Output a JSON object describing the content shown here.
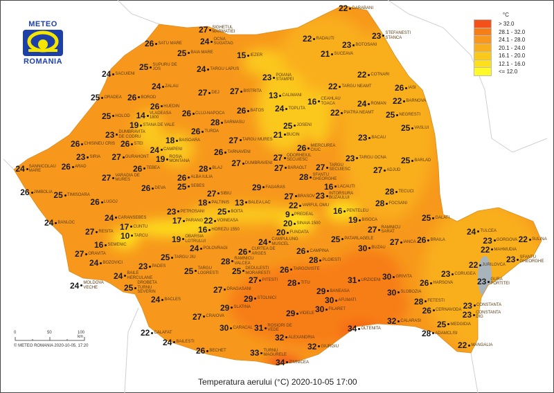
{
  "logo": {
    "top": "METEO",
    "bottom": "ROMANIA",
    "brand_color": "#1d3fa8",
    "accent_color": "#f5e600"
  },
  "title": "Temperatura aerului (°C) 2020-10-05 17:00",
  "legend": {
    "unit": "°C",
    "classes": [
      {
        "label": "> 32.0",
        "color": "#f4501a"
      },
      {
        "label": "28.1 - 32.0",
        "color": "#f77d16"
      },
      {
        "label": "24.1 - 28.0",
        "color": "#f7981c"
      },
      {
        "label": "20.1 - 24.0",
        "color": "#f9ae1e"
      },
      {
        "label": "16.1 - 20.0",
        "color": "#fbc81c"
      },
      {
        "label": "12.1 - 16.0",
        "color": "#fde01a"
      },
      {
        "label": "<= 12.0",
        "color": "#fff92a"
      }
    ]
  },
  "scale_bar": {
    "ticks": [
      "0",
      "50",
      "100 km"
    ]
  },
  "copyright": "© METEO ROMANIA 2020-10-05, 17:20",
  "stations": [
    {
      "name": "SIGHETUL MARMATIEI",
      "value": "27"
    },
    {
      "name": "OCNA SUGATAG",
      "value": "24"
    },
    {
      "name": "SATU MARE",
      "value": "26"
    },
    {
      "name": "BAIA MARE",
      "value": "25"
    },
    {
      "name": "IEZER",
      "value": "15"
    },
    {
      "name": "SUPURU DE JOS",
      "value": "25"
    },
    {
      "name": "SACUIENI",
      "value": "24"
    },
    {
      "name": "TARGU LAPUS",
      "value": "24"
    },
    {
      "name": "ZALAU",
      "value": "24"
    },
    {
      "name": "DEJ",
      "value": "27"
    },
    {
      "name": "BISTRITA",
      "value": "27"
    },
    {
      "name": "POIANA STAMPEI",
      "value": "23"
    },
    {
      "name": "CALIMANI",
      "value": "13"
    },
    {
      "name": "ORADEA",
      "value": "25"
    },
    {
      "name": "BOROD",
      "value": "26"
    },
    {
      "name": "HUEDIN",
      "value": "26"
    },
    {
      "name": "VLADEASA 1800",
      "value": "14"
    },
    {
      "name": "HOLOD",
      "value": "25"
    },
    {
      "name": "STANA DE VALE",
      "value": "19"
    },
    {
      "name": "DUMBRAVITA DE CODRU",
      "value": "23"
    },
    {
      "name": "CHISINEU CRIS",
      "value": "26"
    },
    {
      "name": "STEI",
      "value": "26"
    },
    {
      "name": "CLUJ-NAPOCA",
      "value": "26"
    },
    {
      "name": "BATOS",
      "value": "26"
    },
    {
      "name": "SARMASU",
      "value": "28"
    },
    {
      "name": "TURDA",
      "value": "26"
    },
    {
      "name": "TARGU MURES",
      "value": "27"
    },
    {
      "name": "BAISOARA",
      "value": "18"
    },
    {
      "name": "TOPLITA",
      "value": "24"
    },
    {
      "name": "BUCIN",
      "value": "21"
    },
    {
      "name": "JOSENI",
      "value": "25"
    },
    {
      "name": "CEAHLAU TOACA",
      "value": "16"
    },
    {
      "name": "CAMPENI",
      "value": "24"
    },
    {
      "name": "ROSIA MONTANA",
      "value": "19"
    },
    {
      "name": "SIRIA",
      "value": "23"
    },
    {
      "name": "GURAHONT",
      "value": "27"
    },
    {
      "name": "TARNAVENI",
      "value": "26"
    },
    {
      "name": "ODORHEIUL SECUIESC",
      "value": "27"
    },
    {
      "name": "MIERCUREA CIUC",
      "value": "26"
    },
    {
      "name": "SANNICOLAU MARE",
      "value": "24"
    },
    {
      "name": "ARAD",
      "value": "26"
    },
    {
      "name": "VARADIA DE MURES",
      "value": "27"
    },
    {
      "name": "TEBEA",
      "value": "26"
    },
    {
      "name": "ALBA IULIA",
      "value": "26"
    },
    {
      "name": "BLAJ",
      "value": "28"
    },
    {
      "name": "DUMBRAVENI",
      "value": "27"
    },
    {
      "name": "SEBES",
      "value": "25"
    },
    {
      "name": "DEVA",
      "value": "26"
    },
    {
      "name": "JIMBOLIA",
      "value": "26"
    },
    {
      "name": "TIMISOARA",
      "value": "25"
    },
    {
      "name": "LUGOJ",
      "value": "26"
    },
    {
      "name": "SIBIU",
      "value": "27"
    },
    {
      "name": "FAGARAS",
      "value": "29"
    },
    {
      "name": "BARAOLT",
      "value": "27"
    },
    {
      "name": "TARGU SECUIESC",
      "value": "27"
    },
    {
      "name": "SFANTU GHEORGHE",
      "value": "28"
    },
    {
      "name": "LACAUTI",
      "value": "16"
    },
    {
      "name": "TARGU OCNA",
      "value": "23"
    },
    {
      "name": "BACAU",
      "value": "23"
    },
    {
      "name": "ADJUD",
      "value": "27"
    },
    {
      "name": "BARLAD",
      "value": "25"
    },
    {
      "name": "VASLUI",
      "value": "25"
    },
    {
      "name": "NEGRESTI",
      "value": "25"
    },
    {
      "name": "BARNOVA",
      "value": "22"
    },
    {
      "name": "IASI",
      "value": "26"
    },
    {
      "name": "ROMAN",
      "value": "24"
    },
    {
      "name": "PIATRA NEAMT",
      "value": "22"
    },
    {
      "name": "TARGU NEAMT",
      "value": "22"
    },
    {
      "name": "COTNARI",
      "value": "22"
    },
    {
      "name": "SUCEAVA",
      "value": "21"
    },
    {
      "name": "BOTOSANI",
      "value": "23"
    },
    {
      "name": "RADAUTI",
      "value": "22"
    },
    {
      "name": "DARABANI",
      "value": "22"
    },
    {
      "name": "STEFANESTI STANCA",
      "value": "23"
    },
    {
      "name": "TECUCI",
      "value": "28"
    },
    {
      "name": "FOCSANI",
      "value": "28"
    },
    {
      "name": "GALATI",
      "value": "25"
    },
    {
      "name": "PALTINIS",
      "value": "18"
    },
    {
      "name": "BOITA",
      "value": "25"
    },
    {
      "name": "BALEA LAC",
      "value": "13"
    },
    {
      "name": "INTORSURA BUZAULUI",
      "value": "23"
    },
    {
      "name": "BISOCA",
      "value": "19"
    },
    {
      "name": "PENTELEU",
      "value": "16"
    },
    {
      "name": "BRASOV",
      "value": "27"
    },
    {
      "name": "VARFUL OMU",
      "value": "22"
    },
    {
      "name": "PREDEAL",
      "value": "9"
    },
    {
      "name": "FUNDATA",
      "value": "20"
    },
    {
      "name": "SINAIA 1500",
      "value": "20"
    },
    {
      "name": "CAMPULUNG MUSCEL",
      "value": "24"
    },
    {
      "name": "BANLOC",
      "value": "24"
    },
    {
      "name": "CARANSEBES",
      "value": "24"
    },
    {
      "name": "RESITA",
      "value": "27"
    },
    {
      "name": "CUNTU",
      "value": "17"
    },
    {
      "name": "TARCU",
      "value": "10"
    },
    {
      "name": "SEMENIC",
      "value": "16"
    },
    {
      "name": "ORAVITA",
      "value": "27"
    },
    {
      "name": "BOZOVICI",
      "value": "24"
    },
    {
      "name": "MOLDOVA VECHE",
      "value": "24"
    },
    {
      "name": "BAILE HERCULANE",
      "value": "24"
    },
    {
      "name": "PADES",
      "value": "23"
    },
    {
      "name": "PETROSANI",
      "value": "23"
    },
    {
      "name": "OBARSIA LOTRULUI",
      "value": "19"
    },
    {
      "name": "PARANG",
      "value": "17"
    },
    {
      "name": "VOINEASA",
      "value": "22"
    },
    {
      "name": "HOREZU 1550",
      "value": "16"
    },
    {
      "name": "POLOVRAGI",
      "value": "24"
    },
    {
      "name": "TARGU JIU",
      "value": "25"
    },
    {
      "name": "TARGU LOGRESTI",
      "value": "25"
    },
    {
      "name": "RAMNICU VALCEA",
      "value": "28"
    },
    {
      "name": "CURTEA DE ARGES",
      "value": "26"
    },
    {
      "name": "DEDULESTI MORARESTI",
      "value": "25"
    },
    {
      "name": "PITESTI",
      "value": "27"
    },
    {
      "name": "DRAGASANI",
      "value": "27"
    },
    {
      "name": "CAMPINA",
      "value": "26"
    },
    {
      "name": "TARGOVISTE",
      "value": "26"
    },
    {
      "name": "PLOIESTI",
      "value": "28"
    },
    {
      "name": "PATARLAGELE",
      "value": "25"
    },
    {
      "name": "BUZAU",
      "value": "30"
    },
    {
      "name": "RAMNICU SARAT",
      "value": "27"
    },
    {
      "name": "IANCA",
      "value": "27"
    },
    {
      "name": "BRAILA",
      "value": "26"
    },
    {
      "name": "TULCEA",
      "value": "24"
    },
    {
      "name": "GORGOVA",
      "value": "23"
    },
    {
      "name": "MAHMUDIA",
      "value": "22"
    },
    {
      "name": "SULINA",
      "value": "22"
    },
    {
      "name": "SFANTU GHEORGHE",
      "value": "23"
    },
    {
      "name": "JURILOVCA",
      "value": "22"
    },
    {
      "name": "GURA PORTITEI",
      "value": "23"
    },
    {
      "name": "CORUGEA",
      "value": "23"
    },
    {
      "name": "HARSOVA",
      "value": "26"
    },
    {
      "name": "TITU",
      "value": "28"
    },
    {
      "name": "URZICENI",
      "value": "31"
    },
    {
      "name": "GRIVITA",
      "value": "30"
    },
    {
      "name": "SLOBOZIA",
      "value": "30"
    },
    {
      "name": "BANEASA",
      "value": "29"
    },
    {
      "name": "AFUMATI",
      "value": "30"
    },
    {
      "name": "FILARET",
      "value": "30"
    },
    {
      "name": "STOLNICI",
      "value": "29"
    },
    {
      "name": "SLATINA",
      "value": "29"
    },
    {
      "name": "CRAIOVA",
      "value": "27"
    },
    {
      "name": "VIDELE",
      "value": "29"
    },
    {
      "name": "FETESTI",
      "value": "28"
    },
    {
      "name": "CERNAVODA",
      "value": "26"
    },
    {
      "name": "MEDGIDIA",
      "value": "25"
    },
    {
      "name": "CONSTANTA",
      "value": "23"
    },
    {
      "name": "CONSTANTA DIG",
      "value": "23"
    },
    {
      "name": "CALARASI",
      "value": "32"
    },
    {
      "name": "ADAMCLISI",
      "value": "28"
    },
    {
      "name": "OLTENITA",
      "value": "34"
    },
    {
      "name": "CARACAL",
      "value": "30"
    },
    {
      "name": "ROSIORI DE VEDE",
      "value": "31"
    },
    {
      "name": "ALEXANDRIA",
      "value": "32"
    },
    {
      "name": "GIURGIU",
      "value": "32"
    },
    {
      "name": "ZIMNICEA",
      "value": "34"
    },
    {
      "name": "TURNU MAGURELE",
      "value": "33"
    },
    {
      "name": "BECHET",
      "value": "26"
    },
    {
      "name": "BAILESTI",
      "value": "24"
    },
    {
      "name": "CALAFAT",
      "value": "22"
    },
    {
      "name": "BACLES",
      "value": "24"
    },
    {
      "name": "DROBETA TURNU SEVERIN",
      "value": "25"
    },
    {
      "name": "MANGALIA",
      "value": "22"
    }
  ]
}
